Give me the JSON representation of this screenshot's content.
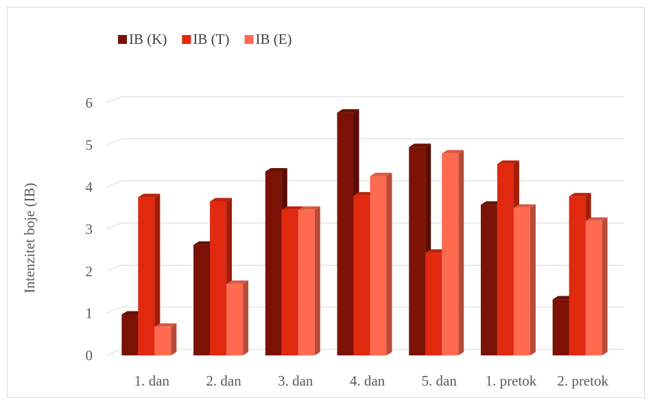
{
  "chart_data": {
    "type": "bar",
    "title": "",
    "xlabel": "",
    "ylabel": "Intenzitet boje (IB)",
    "ylim": [
      0,
      6
    ],
    "yticks": [
      0,
      1,
      2,
      3,
      4,
      5,
      6
    ],
    "grid": true,
    "legend_position": "top-left",
    "categories": [
      "1. dan",
      "2. dan",
      "3. dan",
      "4. dan",
      "5. dan",
      "1. pretok",
      "2. pretok"
    ],
    "series": [
      {
        "name": "IB (K)",
        "color": "#7b1205",
        "values": [
          0.97,
          2.63,
          4.37,
          5.77,
          4.95,
          3.58,
          1.33
        ]
      },
      {
        "name": "IB (T)",
        "color": "#e0290f",
        "values": [
          3.76,
          3.66,
          3.46,
          3.8,
          2.44,
          4.55,
          3.78
        ]
      },
      {
        "name": "IB (E)",
        "color": "#ff6a50",
        "values": [
          0.68,
          1.7,
          3.46,
          4.26,
          4.8,
          3.51,
          3.2
        ]
      }
    ]
  }
}
